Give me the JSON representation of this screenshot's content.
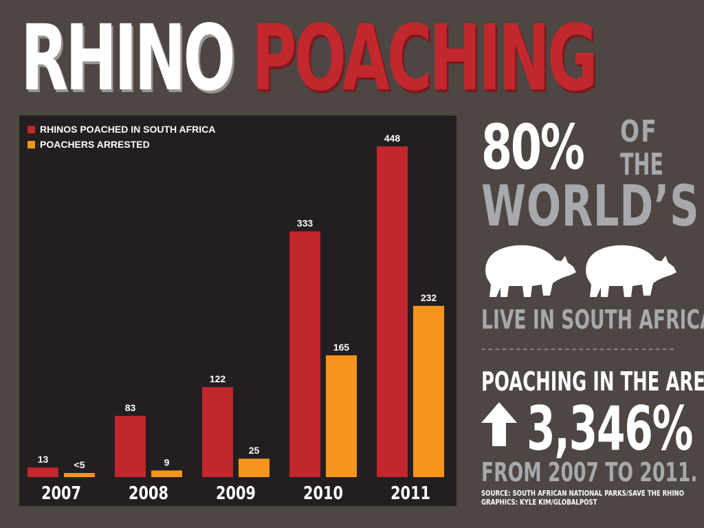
{
  "title": {
    "word1": "RHINO",
    "word2": "POACHING"
  },
  "colors": {
    "background": "#4d4642",
    "panel": "#231f20",
    "poached": "#c1272d",
    "arrested": "#f7941d",
    "white": "#ffffff",
    "grey": "#a7a9ac"
  },
  "sidebar": {
    "big_percent": "80%",
    "of": "OF",
    "the": "THE",
    "worlds": "WORLD’S",
    "live": "LIVE IN SOUTH AFRICA.",
    "poaching_area": "POACHING IN THE AREA",
    "increase": "3,346%",
    "from_to": "FROM 2007 TO 2011.",
    "source": "SOURCE: SOUTH AFRICAN NATIONAL PARKS/SAVE THE RHINO",
    "credit": "GRAPHICS: KYLE KIM/GLOBALPOST",
    "icons": [
      "rhino-icon",
      "rhino-icon",
      "up-arrow-icon"
    ]
  },
  "chart_data": {
    "type": "bar",
    "categories": [
      "2007",
      "2008",
      "2009",
      "2010",
      "2011"
    ],
    "series": [
      {
        "name": "RHINOS POACHED IN SOUTH AFRICA",
        "color": "#c1272d",
        "values": [
          13,
          83,
          122,
          333,
          448
        ],
        "labels": [
          "13",
          "83",
          "122",
          "333",
          "448"
        ]
      },
      {
        "name": "POACHERS ARRESTED",
        "color": "#f7941d",
        "values": [
          5,
          9,
          25,
          165,
          232
        ],
        "labels": [
          "<5",
          "9",
          "25",
          "165",
          "232"
        ]
      }
    ],
    "ylim": [
      0,
      448
    ],
    "grid": false,
    "legend": "top-left"
  }
}
